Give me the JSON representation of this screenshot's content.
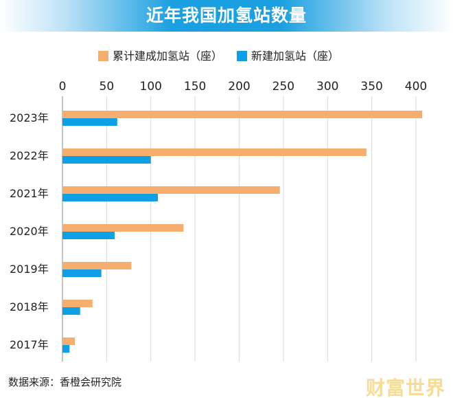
{
  "chart_data": {
    "type": "bar",
    "orientation": "horizontal",
    "title": "近年我国加氢站数量",
    "categories": [
      "2023年",
      "2022年",
      "2021年",
      "2020年",
      "2019年",
      "2018年",
      "2017年"
    ],
    "series": [
      {
        "name": "累计建成加氢站（座）",
        "color": "#f5ae6e",
        "values": [
          407,
          344,
          246,
          137,
          78,
          34,
          14
        ]
      },
      {
        "name": "新建加氢站（座）",
        "color": "#0f9fe4",
        "values": [
          62,
          100,
          108,
          59,
          44,
          20,
          8
        ]
      }
    ],
    "xlim": [
      0,
      400
    ],
    "xticks": [
      0,
      50,
      100,
      150,
      200,
      250,
      300,
      350,
      400
    ],
    "xticks_position": "top",
    "grid": "vertical",
    "legend": "top-center"
  },
  "source": "数据来源：香橙会研究院",
  "watermark": "财富世界"
}
